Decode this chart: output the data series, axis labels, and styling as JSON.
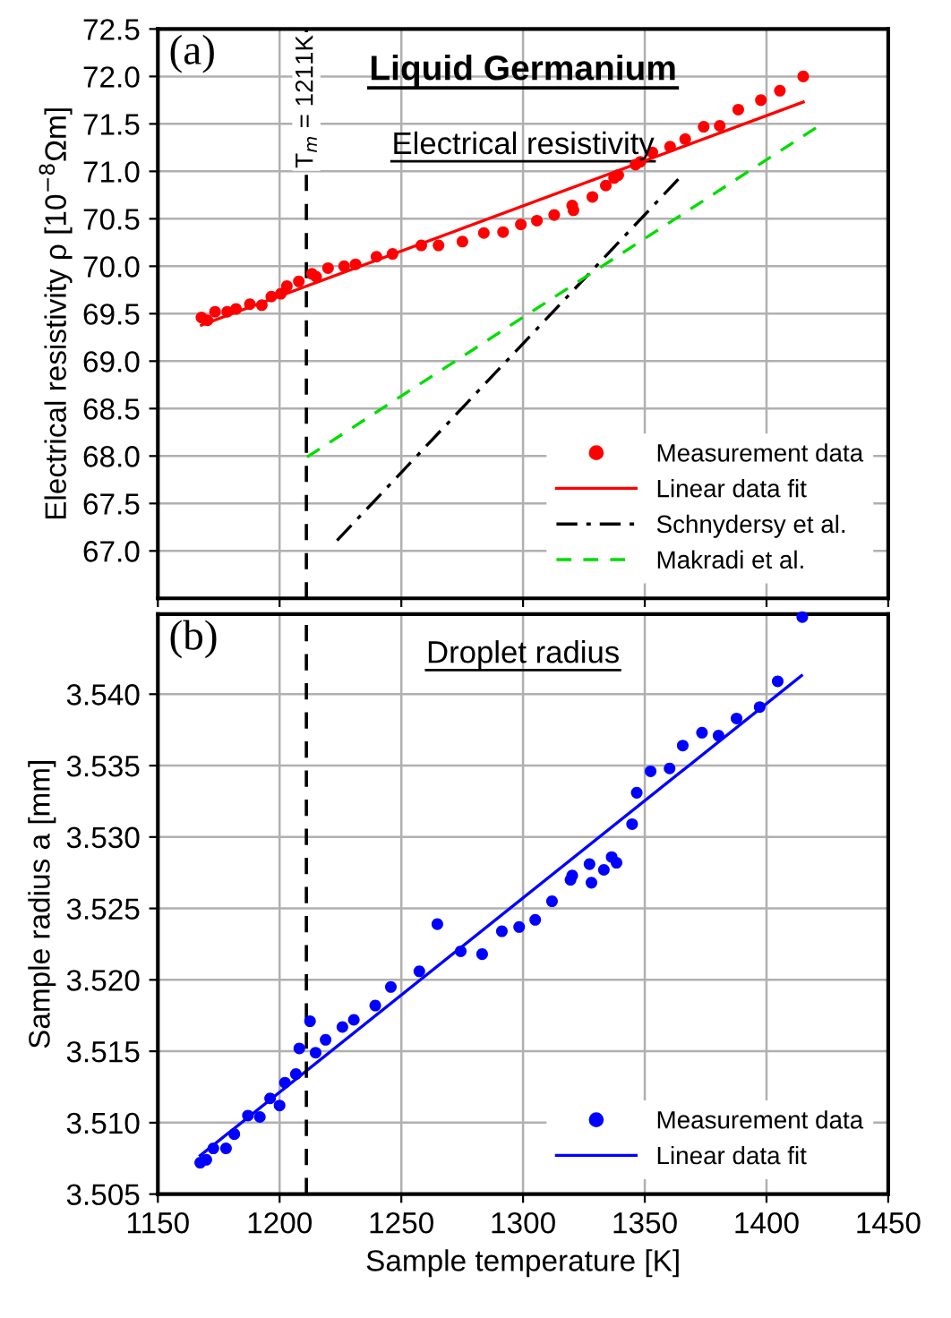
{
  "chart_data": [
    {
      "type": "scatter",
      "title": "Liquid Germanium",
      "subtitle": "Electrical resistivity",
      "ylabel": "Electrical resistivity ρ [10$^{−8}$Ωm]",
      "annotations": [
        "(a)"
      ],
      "xlim": [
        1150,
        1450
      ],
      "xticks": [
        1150,
        1200,
        1250,
        1300,
        1350,
        1400,
        1450
      ],
      "ylim": [
        66.5,
        72.5
      ],
      "yticks": [
        {
          "value": 67,
          "label": "67.0"
        },
        67.5,
        {
          "value": 68,
          "label": "68.0"
        },
        68.5,
        {
          "value": 69,
          "label": "69.0"
        },
        69.5,
        {
          "value": 70,
          "label": "70.0"
        },
        70.5,
        {
          "value": 71,
          "label": "71.0"
        },
        71.5,
        {
          "value": 72,
          "label": "72.0"
        },
        72.5
      ],
      "tick_labels": "y",
      "grid": true,
      "legend": "bottom right",
      "ref_lines": [
        {
          "axis": "x",
          "value": 1211,
          "label": "T$_{m}$ = 1211K",
          "color": "#000000",
          "line_style": "dashed"
        }
      ],
      "series": [
        {
          "name": "Measurement data",
          "color": "#ff0000",
          "marker": "circle",
          "x": [
            1167.9,
            1170.4,
            1173.5,
            1178.5,
            1182.1,
            1187.8,
            1192.7,
            1196.6,
            1200.5,
            1203,
            1207.9,
            1213.3,
            1215,
            1219.9,
            1226.5,
            1231.2,
            1239.8,
            1246.4,
            1258.2,
            1265.3,
            1275.1,
            1283.9,
            1291.8,
            1299.1,
            1305.7,
            1312.8,
            1320.2,
            1320.7,
            1328.5,
            1334,
            1337.4,
            1339.1,
            1346.2,
            1348.2,
            1353.1,
            1360.4,
            1366.6,
            1374.2,
            1380.8,
            1388.4,
            1397.7,
            1405.5,
            1415.1
          ],
          "values": [
            69.46,
            69.43,
            69.52,
            69.52,
            69.55,
            69.6,
            69.59,
            69.68,
            69.71,
            69.79,
            69.84,
            69.92,
            69.89,
            69.98,
            70.0,
            70.02,
            70.1,
            70.13,
            70.22,
            70.22,
            70.26,
            70.35,
            70.36,
            70.44,
            70.48,
            70.54,
            70.64,
            70.59,
            70.73,
            70.85,
            70.93,
            70.96,
            71.07,
            71.1,
            71.2,
            71.26,
            71.34,
            71.47,
            71.48,
            71.65,
            71.75,
            71.85,
            72.0
          ]
        },
        {
          "name": "Linear data fit",
          "type": "line",
          "color": "#ff0000",
          "line_style": "solid",
          "x": [
            1167.9,
            1415.1
          ],
          "values": [
            69.38,
            71.73
          ]
        },
        {
          "name": "Schnydersy et al.",
          "type": "line",
          "color": "#000000",
          "line_style": "dashdot",
          "x": [
            1223.6,
            1364.6
          ],
          "values": [
            67.11,
            70.94
          ]
        },
        {
          "name": "Makradi et al.",
          "type": "line",
          "color": "#00dd00",
          "line_style": "dashed",
          "x": [
            1211.3,
            1421
          ],
          "values": [
            67.99,
            71.47
          ]
        }
      ]
    },
    {
      "type": "scatter",
      "subtitle": "Droplet radius",
      "xlabel": "Sample temperature [K]",
      "ylabel": "Sample radius a [mm]",
      "annotations": [
        "(b)"
      ],
      "xlim": [
        1150,
        1450
      ],
      "xticks": [
        1150,
        1200,
        1250,
        1300,
        1350,
        1400,
        1450
      ],
      "ylim": [
        3.505,
        3.5456
      ],
      "yticks": [
        3.505,
        {
          "value": 3.51,
          "label": "3.510"
        },
        3.515,
        {
          "value": 3.52,
          "label": "3.520"
        },
        3.525,
        {
          "value": 3.53,
          "label": "3.530"
        },
        3.535,
        {
          "value": 3.54,
          "label": "3.540"
        }
      ],
      "grid": true,
      "legend": "bottom right",
      "ref_lines": [
        {
          "axis": "x",
          "value": 1211,
          "color": "#000000",
          "line_style": "dashed"
        }
      ],
      "series": [
        {
          "name": "Measurement data",
          "color": "#0000ff",
          "marker": "circle",
          "x": [
            1167.4,
            1169.9,
            1172.8,
            1178,
            1181.4,
            1187,
            1191.9,
            1196.1,
            1200,
            1202.2,
            1206.7,
            1208.1,
            1212.5,
            1214.8,
            1218.9,
            1225.8,
            1230.5,
            1239.3,
            1245.7,
            1257.4,
            1264.8,
            1274.4,
            1283.2,
            1291.3,
            1298.4,
            1305,
            1311.9,
            1319.5,
            1320.2,
            1327.3,
            1328.1,
            1333.2,
            1336.4,
            1338.4,
            1344.8,
            1346.7,
            1352.4,
            1360.2,
            1365.6,
            1373.5,
            1380.3,
            1387.7,
            1397.2,
            1404.6,
            1414.7
          ],
          "values": [
            3.5072,
            3.5074,
            3.5082,
            3.5082,
            3.5092,
            3.5105,
            3.5104,
            3.5117,
            3.5112,
            3.5128,
            3.5134,
            3.5152,
            3.5171,
            3.5149,
            3.5158,
            3.5167,
            3.5172,
            3.5182,
            3.5195,
            3.5206,
            3.5239,
            3.522,
            3.5218,
            3.5234,
            3.5237,
            3.5242,
            3.5255,
            3.527,
            3.5273,
            3.5281,
            3.5268,
            3.5277,
            3.5286,
            3.5282,
            3.5309,
            3.5331,
            3.5346,
            3.5348,
            3.5364,
            3.5373,
            3.5371,
            3.5383,
            3.5391,
            3.5409,
            3.5454
          ]
        },
        {
          "name": "Linear data fit",
          "type": "line",
          "color": "#0000ff",
          "line_style": "solid",
          "x": [
            1167.4,
            1414.4
          ],
          "values": [
            3.5077,
            3.5413
          ]
        }
      ]
    }
  ]
}
